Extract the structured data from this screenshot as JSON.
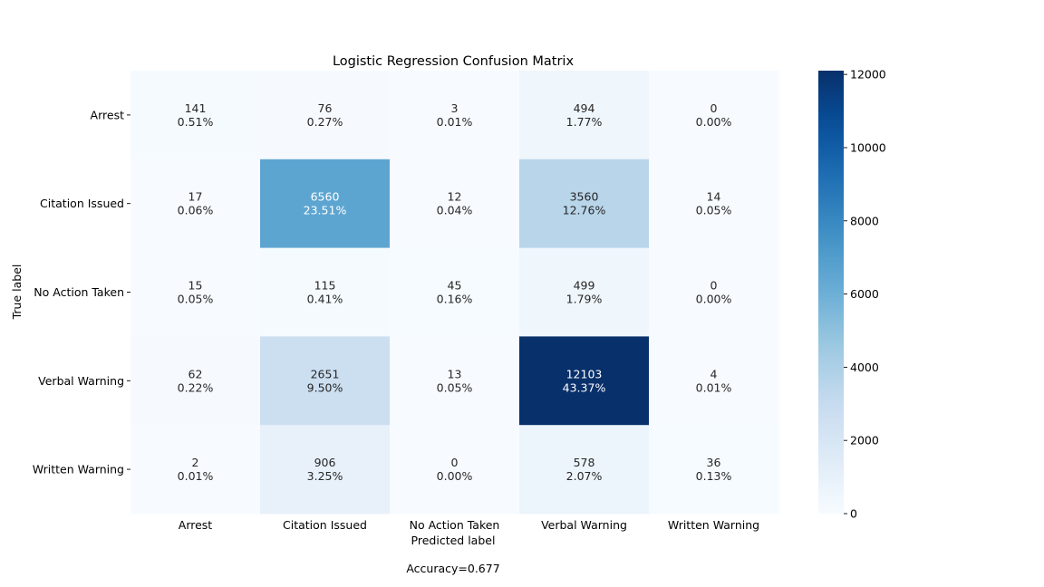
{
  "chart_data": {
    "type": "heatmap",
    "title": "Logistic Regression Confusion Matrix",
    "xlabel": "Predicted label",
    "ylabel": "True label",
    "footer": "Accuracy=0.677",
    "x_categories": [
      "Arrest",
      "Citation Issued",
      "No Action Taken",
      "Verbal Warning",
      "Written Warning"
    ],
    "y_categories": [
      "Arrest",
      "Citation Issued",
      "No Action Taken",
      "Verbal Warning",
      "Written Warning"
    ],
    "values": [
      [
        141,
        76,
        3,
        494,
        0
      ],
      [
        17,
        6560,
        12,
        3560,
        14
      ],
      [
        15,
        115,
        45,
        499,
        0
      ],
      [
        62,
        2651,
        13,
        12103,
        4
      ],
      [
        2,
        906,
        0,
        578,
        36
      ]
    ],
    "percentages": [
      [
        "0.51%",
        "0.27%",
        "0.01%",
        "1.77%",
        "0.00%"
      ],
      [
        "0.06%",
        "23.51%",
        "0.04%",
        "12.76%",
        "0.05%"
      ],
      [
        "0.05%",
        "0.41%",
        "0.16%",
        "1.79%",
        "0.00%"
      ],
      [
        "0.22%",
        "9.50%",
        "0.05%",
        "43.37%",
        "0.01%"
      ],
      [
        "0.01%",
        "3.25%",
        "0.00%",
        "2.07%",
        "0.13%"
      ]
    ],
    "colormap": "Blues",
    "color_range": [
      0,
      12103
    ],
    "colorbar_ticks": [
      0,
      2000,
      4000,
      6000,
      8000,
      10000,
      12000
    ],
    "grid": false
  }
}
